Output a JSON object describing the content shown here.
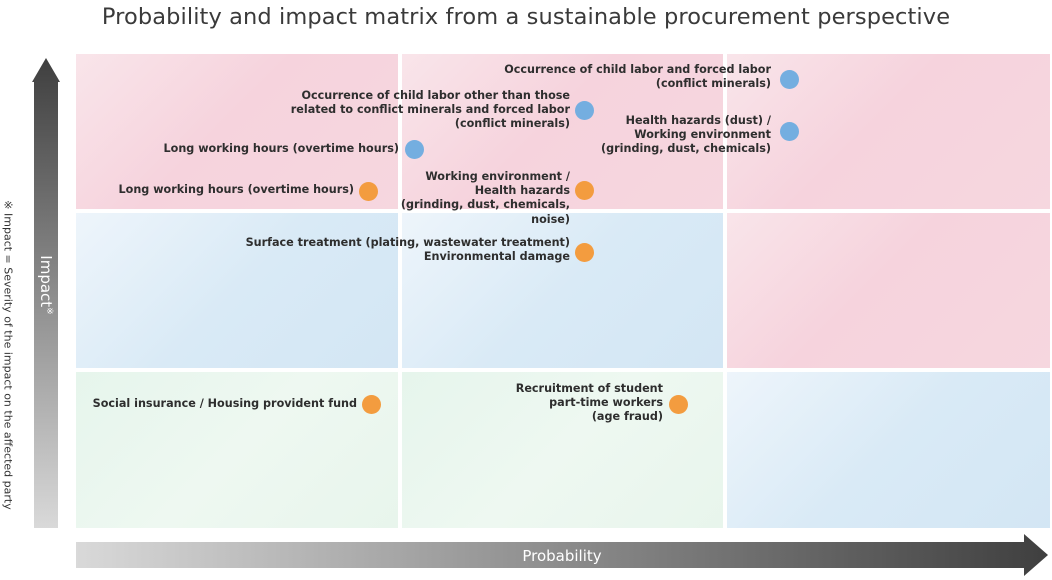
{
  "title": "Probability and impact matrix from a sustainable procurement perspective",
  "axes": {
    "y_label": "Impact",
    "y_label_mark": "※",
    "x_label": "Probability",
    "footnote": "※ Impact = Severity of the impact on the affected party"
  },
  "colors": {
    "high_risk": "#f6d3dd",
    "medium_risk": "#d3e6f4",
    "low_risk": "#e6f5ec",
    "blue_marker": "#74aee0",
    "orange_marker": "#f39c3f",
    "arrow": "#4a4a4a"
  },
  "matrix": {
    "rows": 3,
    "cols": 3,
    "cells": [
      [
        "high",
        "high",
        "high"
      ],
      [
        "medium",
        "medium",
        "high"
      ],
      [
        "low",
        "low",
        "medium"
      ]
    ]
  },
  "items": [
    {
      "text": "Occurrence of child labor and forced labor\n(conflict minerals)",
      "color": "blue"
    },
    {
      "text": "Occurrence of child labor other than those\nrelated to conflict minerals and forced labor\n(conflict minerals)",
      "color": "blue"
    },
    {
      "text": "Health hazards (dust) /\nWorking environment\n(grinding, dust, chemicals)",
      "color": "blue"
    },
    {
      "text": "Long working hours (overtime hours)",
      "color": "blue"
    },
    {
      "text": "Long working hours (overtime hours)",
      "color": "orange"
    },
    {
      "text": "Working environment /\nHealth hazards\n(grinding, dust, chemicals,\nnoise)",
      "color": "orange"
    },
    {
      "text": "Surface treatment (plating, wastewater treatment)\nEnvironmental damage",
      "color": "orange"
    },
    {
      "text": "Social insurance / Housing provident fund",
      "color": "orange"
    },
    {
      "text": "Recruitment of student\npart-time workers\n(age fraud)",
      "color": "orange"
    }
  ]
}
